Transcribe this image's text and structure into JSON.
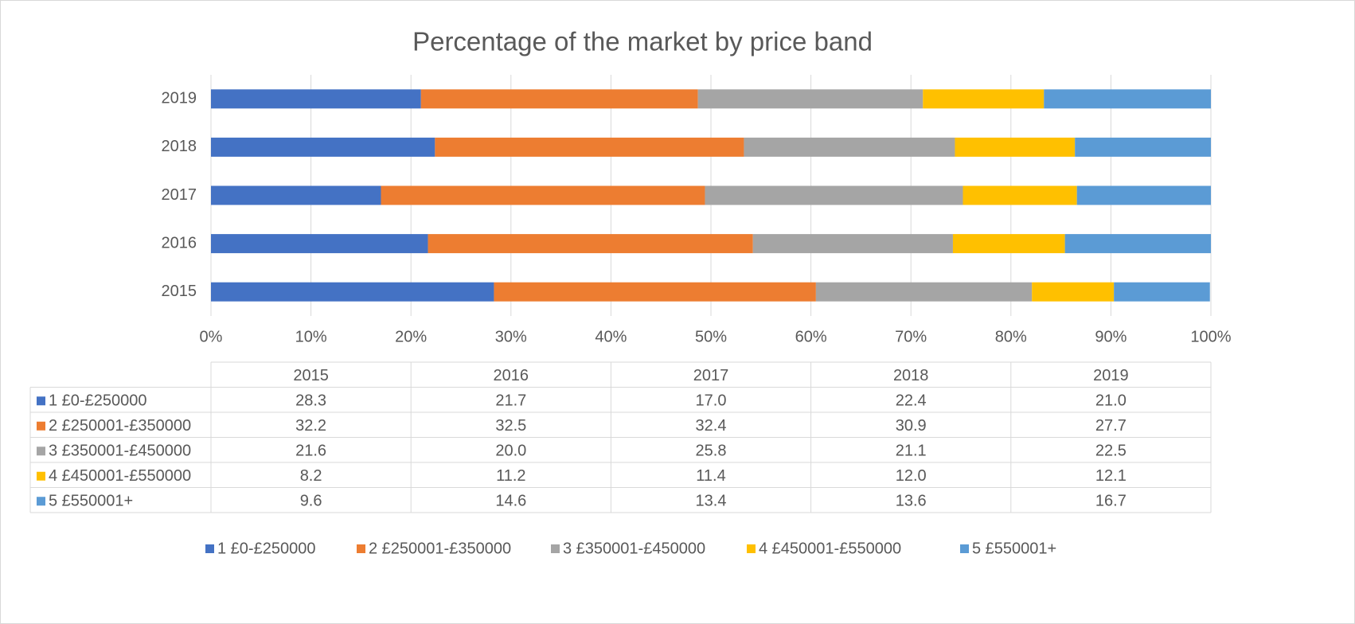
{
  "chart_data": {
    "type": "bar",
    "orientation": "horizontal",
    "stacked": true,
    "title": "Percentage of the market by price band",
    "categories": [
      "2015",
      "2016",
      "2017",
      "2018",
      "2019"
    ],
    "series": [
      {
        "name": "1 £0-£250000",
        "color": "#4472c4",
        "values": [
          28.3,
          21.7,
          17.0,
          22.4,
          21.0
        ],
        "value_labels": [
          "28.3",
          "21.7",
          "17.0",
          "22.4",
          "21.0"
        ]
      },
      {
        "name": "2 £250001-£350000",
        "color": "#ed7d31",
        "values": [
          32.2,
          32.5,
          32.4,
          30.9,
          27.7
        ],
        "value_labels": [
          "32.2",
          "32.5",
          "32.4",
          "30.9",
          "27.7"
        ]
      },
      {
        "name": "3 £350001-£450000",
        "color": "#a5a5a5",
        "values": [
          21.6,
          20.0,
          25.8,
          21.1,
          22.5
        ],
        "value_labels": [
          "21.6",
          "20.0",
          "25.8",
          "21.1",
          "22.5"
        ]
      },
      {
        "name": "4 £450001-£550000",
        "color": "#ffc000",
        "values": [
          8.2,
          11.2,
          11.4,
          12.0,
          12.1
        ],
        "value_labels": [
          "8.2",
          "11.2",
          "11.4",
          "12.0",
          "12.1"
        ]
      },
      {
        "name": "5 £550001+",
        "color": "#5b9bd5",
        "values": [
          9.6,
          14.6,
          13.4,
          13.6,
          16.7
        ],
        "value_labels": [
          "9.6",
          "14.6",
          "13.4",
          "13.6",
          "16.7"
        ]
      }
    ],
    "xlim": [
      0,
      100
    ],
    "xticks": [
      {
        "value": 0,
        "label": "0%"
      },
      {
        "value": 10,
        "label": "10%"
      },
      {
        "value": 20,
        "label": "20%"
      },
      {
        "value": 30,
        "label": "30%"
      },
      {
        "value": 40,
        "label": "40%"
      },
      {
        "value": 50,
        "label": "50%"
      },
      {
        "value": 60,
        "label": "60%"
      },
      {
        "value": 70,
        "label": "70%"
      },
      {
        "value": 80,
        "label": "80%"
      },
      {
        "value": 90,
        "label": "90%"
      },
      {
        "value": 100,
        "label": "100%"
      }
    ],
    "grid": true,
    "legend": "bottom"
  }
}
